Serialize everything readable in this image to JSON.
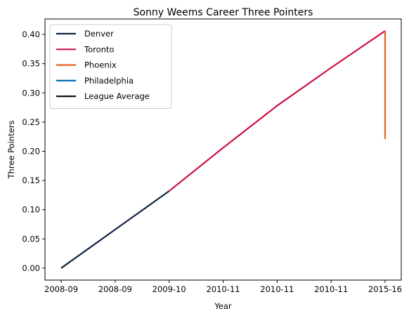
{
  "chart_data": {
    "type": "line",
    "title": "Sonny Weems Career Three Pointers",
    "xlabel": "Year",
    "ylabel": "Three Pointers",
    "x_tick_labels": [
      "2008-09",
      "2008-09",
      "2009-10",
      "2010-11",
      "2010-11",
      "2010-11",
      "2015-16"
    ],
    "y_tick_labels": [
      "0.00",
      "0.05",
      "0.10",
      "0.15",
      "0.20",
      "0.25",
      "0.30",
      "0.35",
      "0.40"
    ],
    "y_ticks": [
      0.0,
      0.05,
      0.1,
      0.15,
      0.2,
      0.25,
      0.3,
      0.35,
      0.4
    ],
    "ylim": [
      -0.0205,
      0.4265
    ],
    "xlim": [
      -0.3,
      6.3
    ],
    "legend_position": "top-left",
    "series": [
      {
        "name": "Denver",
        "color": "#0e2240",
        "points": [
          [
            0,
            0.0
          ],
          [
            1,
            0.066
          ],
          [
            2,
            0.132
          ]
        ]
      },
      {
        "name": "Toronto",
        "color": "#ce1141",
        "points": [
          [
            2,
            0.132
          ],
          [
            3,
            0.206
          ],
          [
            4,
            0.278
          ],
          [
            5,
            0.343
          ],
          [
            6,
            0.406
          ]
        ]
      },
      {
        "name": "Phoenix",
        "color": "#e56020",
        "points": [
          [
            6,
            0.406
          ],
          [
            6,
            0.221
          ]
        ]
      },
      {
        "name": "Philadelphia",
        "color": "#006bb6",
        "points": []
      },
      {
        "name": "League Average",
        "color": "#000000",
        "points": []
      }
    ]
  }
}
